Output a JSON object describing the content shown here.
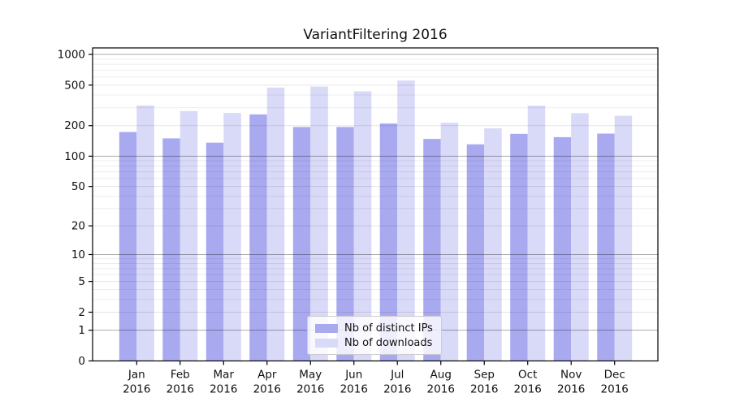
{
  "chart_data": {
    "type": "bar",
    "title": "VariantFiltering 2016",
    "x_months": [
      "Jan",
      "Feb",
      "Mar",
      "Apr",
      "May",
      "Jun",
      "Jul",
      "Aug",
      "Sep",
      "Oct",
      "Nov",
      "Dec"
    ],
    "x_year": "2016",
    "series": [
      {
        "name": "Nb of distinct IPs",
        "color": "#a9a9f0",
        "values": [
          173,
          150,
          136,
          258,
          194,
          194,
          210,
          148,
          131,
          166,
          154,
          167
        ]
      },
      {
        "name": "Nb of downloads",
        "color": "#d9d9f8",
        "values": [
          316,
          278,
          266,
          473,
          484,
          434,
          554,
          213,
          188,
          315,
          265,
          250
        ]
      }
    ],
    "y_scale": "log1p",
    "y_ticks": [
      0,
      1,
      2,
      5,
      10,
      20,
      50,
      100,
      200,
      500,
      1000
    ],
    "ylim": [
      0,
      1155
    ],
    "grid": true,
    "grid_on_top_of_bars": true,
    "legend_position": "lower center",
    "background_color": "#ffffff",
    "major_grid_values": [
      1,
      10,
      100,
      1000
    ]
  }
}
